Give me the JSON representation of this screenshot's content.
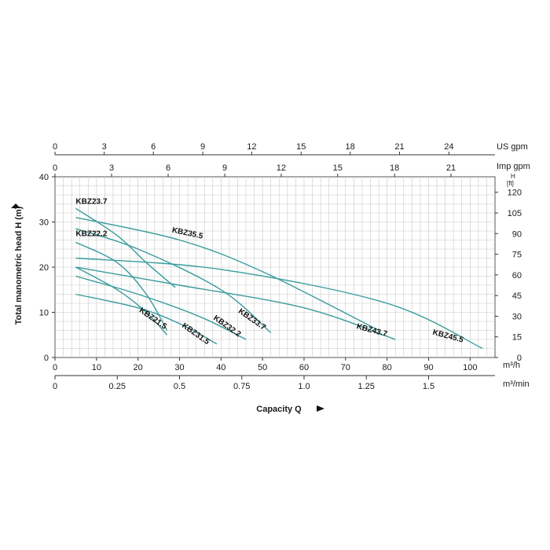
{
  "chart_data": {
    "type": "line",
    "ylabel": "Total manometric head H (m)",
    "xlabel": "Capacity Q",
    "colors": {
      "curve": "#3a9c9c",
      "grid": "#c8c8c8",
      "axis": "#555555"
    },
    "axes": {
      "x_m3h": {
        "unit": "m³/h",
        "lim": [
          0,
          106
        ],
        "ticks": [
          "0",
          "10",
          "20",
          "30",
          "40",
          "50",
          "60",
          "70",
          "80",
          "90",
          "100"
        ],
        "tick_values": [
          0,
          10,
          20,
          30,
          40,
          50,
          60,
          70,
          80,
          90,
          100
        ]
      },
      "x_m3min": {
        "unit": "m³/min",
        "tick_labels": [
          "0",
          "0.25",
          "0.5",
          "0.75",
          "1.0",
          "1.25",
          "1.5"
        ],
        "tick_values": [
          0,
          15,
          30,
          45,
          60,
          75,
          90
        ]
      },
      "x_usgpm": {
        "unit": "US gpm",
        "tick_labels": [
          "0",
          "3",
          "6",
          "9",
          "12",
          "15",
          "18",
          "21",
          "24"
        ],
        "tick_values": [
          0,
          11.86,
          23.7,
          35.6,
          47.4,
          59.3,
          71.1,
          83.0,
          94.9
        ]
      },
      "x_impgpm": {
        "unit": "Imp gpm",
        "tick_labels": [
          "0",
          "3",
          "6",
          "9",
          "12",
          "15",
          "18",
          "21"
        ],
        "tick_values": [
          0,
          13.63,
          27.26,
          40.9,
          54.5,
          68.1,
          81.8,
          95.4
        ]
      },
      "y_m": {
        "lim": [
          0,
          40
        ],
        "ticks": [
          "0",
          "10",
          "20",
          "30",
          "40"
        ],
        "tick_values": [
          0,
          10,
          20,
          30,
          40
        ]
      },
      "y_ft": {
        "unit_h": "H",
        "unit_ft": "[ft]",
        "tick_labels": [
          "0",
          "15",
          "30",
          "45",
          "60",
          "75",
          "90",
          "105",
          "120"
        ],
        "tick_values": [
          0,
          4.57,
          9.14,
          13.72,
          18.29,
          22.86,
          27.43,
          32.0,
          36.58
        ]
      }
    },
    "grid": true,
    "series": [
      {
        "name": "KBZ21.5",
        "x": [
          5,
          15,
          22,
          27
        ],
        "y": [
          20,
          15,
          10,
          5
        ]
      },
      {
        "name": "KBZ22.2",
        "x": [
          5,
          15,
          22,
          27
        ],
        "y": [
          25.5,
          21,
          14,
          6
        ]
      },
      {
        "name": "KBZ23.7",
        "x": [
          5,
          15,
          22,
          29
        ],
        "y": [
          33,
          27,
          21,
          15.5
        ]
      },
      {
        "name": "KBZ31.5",
        "x": [
          5,
          20,
          30,
          39
        ],
        "y": [
          14,
          11,
          7.5,
          3
        ]
      },
      {
        "name": "KBZ32.2",
        "x": [
          5,
          20,
          35,
          46
        ],
        "y": [
          18,
          14,
          9,
          4
        ]
      },
      {
        "name": "KBZ33.7",
        "x": [
          5,
          20,
          40,
          52
        ],
        "y": [
          28.5,
          24,
          15,
          5.5
        ]
      },
      {
        "name": "KBZ35.5",
        "x": [
          5,
          30,
          50,
          78
        ],
        "y": [
          31,
          26,
          19,
          6
        ]
      },
      {
        "name": "KBZ43.7",
        "x": [
          5,
          30,
          60,
          82
        ],
        "y": [
          20,
          16,
          11,
          4
        ]
      },
      {
        "name": "KBZ45.5",
        "x": [
          5,
          40,
          80,
          103
        ],
        "y": [
          22,
          19.5,
          12,
          2
        ]
      }
    ]
  }
}
